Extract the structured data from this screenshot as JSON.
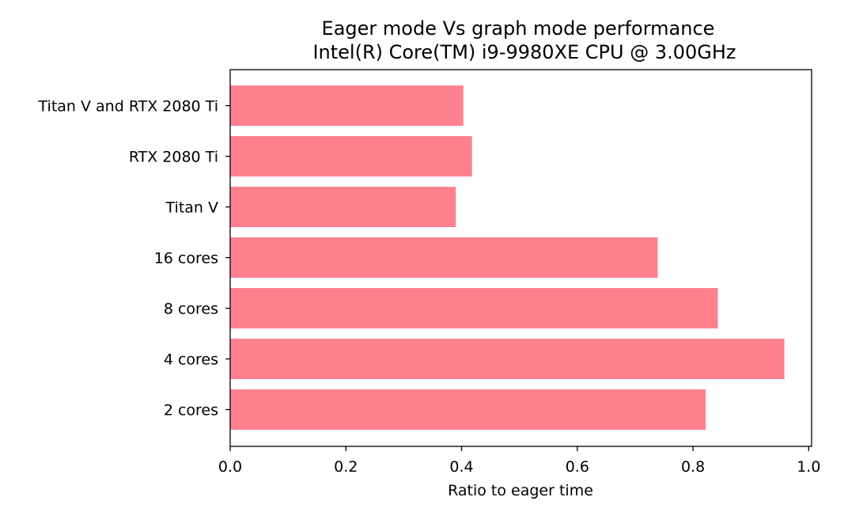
{
  "chart_data": {
    "type": "bar",
    "orientation": "horizontal",
    "title": "Eager mode Vs graph mode performance",
    "subtitle": "Intel(R) Core(TM) i9-9980XE CPU @ 3.00GHz",
    "xlabel": "Ratio to eager time",
    "ylabel": "",
    "categories": [
      "2 cores",
      "4 cores",
      "8 cores",
      "16 cores",
      "Titan V",
      "RTX 2080 Ti",
      "Titan V and RTX 2080 Ti"
    ],
    "values": [
      0.822,
      0.958,
      0.843,
      0.739,
      0.39,
      0.418,
      0.403
    ],
    "xlim": [
      0,
      1.005
    ],
    "xticks": [
      "0.0",
      "0.2",
      "0.4",
      "0.6",
      "0.8",
      "1.0"
    ],
    "bar_color": "#ff808f",
    "grid": false
  }
}
